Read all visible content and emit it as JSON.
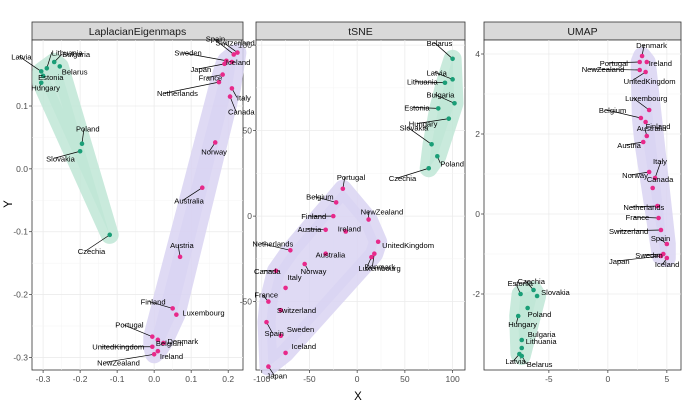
{
  "chart_data": {
    "type": "scatter",
    "xlabel": "X",
    "ylabel": "Y",
    "group_colors": {
      "east": "#1a9e77",
      "west": "#e7298a"
    },
    "hull_colors": {
      "east": "#bfe6d6",
      "west": "#d9d4f2"
    },
    "panels": [
      {
        "title": "LaplacianEigenmaps",
        "xlim": [
          -0.33,
          0.24
        ],
        "ylim": [
          -0.32,
          0.205
        ],
        "xticks": [
          -0.3,
          -0.2,
          -0.1,
          0.0,
          0.1,
          0.2
        ],
        "xtick_labels": [
          "-0.3",
          "-0.2",
          "-0.1",
          "0.0",
          "0.1",
          "0.2"
        ],
        "yticks": [
          0.1,
          0.0,
          -0.1,
          -0.2,
          -0.3
        ],
        "ytick_labels": [
          "0.1",
          "0.0",
          "-0.1",
          "-0.2",
          "-0.3"
        ],
        "points": [
          {
            "name": "Latvia",
            "x": -0.305,
            "y": 0.155,
            "group": "east"
          },
          {
            "name": "Lithuania",
            "x": -0.29,
            "y": 0.16,
            "group": "east"
          },
          {
            "name": "Bulgaria",
            "x": -0.27,
            "y": 0.17,
            "group": "east"
          },
          {
            "name": "Estonia",
            "x": -0.3,
            "y": 0.148,
            "group": "east"
          },
          {
            "name": "Belarus",
            "x": -0.255,
            "y": 0.163,
            "group": "east"
          },
          {
            "name": "Hungary",
            "x": -0.305,
            "y": 0.137,
            "group": "east"
          },
          {
            "name": "Poland",
            "x": -0.195,
            "y": 0.04,
            "group": "east"
          },
          {
            "name": "Slovakia",
            "x": -0.2,
            "y": 0.028,
            "group": "east"
          },
          {
            "name": "Czechia",
            "x": -0.12,
            "y": -0.105,
            "group": "east"
          },
          {
            "name": "Spain",
            "x": 0.215,
            "y": 0.182,
            "group": "west"
          },
          {
            "name": "Switzerland",
            "x": 0.225,
            "y": 0.185,
            "group": "west"
          },
          {
            "name": "Sweden",
            "x": 0.195,
            "y": 0.172,
            "group": "west"
          },
          {
            "name": "Iceland",
            "x": 0.21,
            "y": 0.17,
            "group": "west"
          },
          {
            "name": "Japan",
            "x": 0.19,
            "y": 0.167,
            "group": "west"
          },
          {
            "name": "France",
            "x": 0.185,
            "y": 0.15,
            "group": "west"
          },
          {
            "name": "Netherlands",
            "x": 0.175,
            "y": 0.138,
            "group": "west"
          },
          {
            "name": "Italy",
            "x": 0.21,
            "y": 0.128,
            "group": "west"
          },
          {
            "name": "Canada",
            "x": 0.205,
            "y": 0.115,
            "group": "west"
          },
          {
            "name": "Norway",
            "x": 0.165,
            "y": 0.042,
            "group": "west"
          },
          {
            "name": "Australia",
            "x": 0.13,
            "y": -0.03,
            "group": "west"
          },
          {
            "name": "Austria",
            "x": 0.07,
            "y": -0.14,
            "group": "west"
          },
          {
            "name": "Finland",
            "x": 0.05,
            "y": -0.222,
            "group": "west"
          },
          {
            "name": "Luxembourg",
            "x": 0.06,
            "y": -0.232,
            "group": "west"
          },
          {
            "name": "Portugal",
            "x": -0.005,
            "y": -0.267,
            "group": "west"
          },
          {
            "name": "Belgium",
            "x": 0.01,
            "y": -0.272,
            "group": "west"
          },
          {
            "name": "Denmark",
            "x": 0.025,
            "y": -0.277,
            "group": "west"
          },
          {
            "name": "UnitedKingdom",
            "x": -0.005,
            "y": -0.283,
            "group": "west"
          },
          {
            "name": "Ireland",
            "x": 0.01,
            "y": -0.29,
            "group": "west"
          },
          {
            "name": "NewZealand",
            "x": 0.0,
            "y": -0.295,
            "group": "west"
          }
        ]
      },
      {
        "title": "tSNE",
        "xlim": [
          -106,
          113
        ],
        "ylim": [
          -90,
          103
        ],
        "xticks": [
          -100,
          -50,
          0,
          50,
          100
        ],
        "xtick_labels": [
          "-100",
          "-50",
          "0",
          "50",
          "100"
        ],
        "yticks": [
          100,
          50,
          0,
          -50
        ],
        "ytick_labels": [
          "100",
          "50",
          "0",
          "-50"
        ],
        "points": [
          {
            "name": "Belarus",
            "x": 100,
            "y": 92,
            "group": "east"
          },
          {
            "name": "Latvia",
            "x": 100,
            "y": 80,
            "group": "east"
          },
          {
            "name": "Lithuania",
            "x": 92,
            "y": 78,
            "group": "east"
          },
          {
            "name": "Bulgaria",
            "x": 102,
            "y": 66,
            "group": "east"
          },
          {
            "name": "Estonia",
            "x": 85,
            "y": 63,
            "group": "east"
          },
          {
            "name": "Hungary",
            "x": 96,
            "y": 57,
            "group": "east"
          },
          {
            "name": "Slovakia",
            "x": 78,
            "y": 42,
            "group": "east"
          },
          {
            "name": "Poland",
            "x": 84,
            "y": 35,
            "group": "east"
          },
          {
            "name": "Czechia",
            "x": 75,
            "y": 28,
            "group": "east"
          },
          {
            "name": "Portugal",
            "x": -15,
            "y": 16,
            "group": "west"
          },
          {
            "name": "Belgium",
            "x": -22,
            "y": 8,
            "group": "west"
          },
          {
            "name": "Finland",
            "x": -25,
            "y": 0,
            "group": "west"
          },
          {
            "name": "NewZealand",
            "x": 12,
            "y": -2,
            "group": "west"
          },
          {
            "name": "Austria",
            "x": -33,
            "y": -8,
            "group": "west"
          },
          {
            "name": "Ireland",
            "x": -12,
            "y": -9,
            "group": "west"
          },
          {
            "name": "UnitedKingdom",
            "x": 22,
            "y": -15,
            "group": "west"
          },
          {
            "name": "Netherlands",
            "x": -70,
            "y": -20,
            "group": "west"
          },
          {
            "name": "Denmark",
            "x": 18,
            "y": -22,
            "group": "west"
          },
          {
            "name": "Australia",
            "x": -33,
            "y": -22,
            "group": "west"
          },
          {
            "name": "Luxembourg",
            "x": 15,
            "y": -24,
            "group": "west"
          },
          {
            "name": "Canada",
            "x": -85,
            "y": -32,
            "group": "west"
          },
          {
            "name": "Norway",
            "x": -55,
            "y": -28,
            "group": "west"
          },
          {
            "name": "Italy",
            "x": -75,
            "y": -42,
            "group": "west"
          },
          {
            "name": "France",
            "x": -93,
            "y": -50,
            "group": "west"
          },
          {
            "name": "Switzerland",
            "x": -80,
            "y": -55,
            "group": "west"
          },
          {
            "name": "Spain",
            "x": -95,
            "y": -62,
            "group": "west"
          },
          {
            "name": "Sweden",
            "x": -80,
            "y": -70,
            "group": "west"
          },
          {
            "name": "Iceland",
            "x": -75,
            "y": -80,
            "group": "west"
          },
          {
            "name": "Japan",
            "x": -93,
            "y": -88,
            "group": "west"
          }
        ]
      },
      {
        "title": "UMAP",
        "xlim": [
          -10.5,
          6.2
        ],
        "ylim": [
          -3.9,
          4.35
        ],
        "xticks": [
          -5,
          0,
          5
        ],
        "xtick_labels": [
          "-5",
          "0",
          "5"
        ],
        "yticks": [
          4,
          2,
          0,
          -2
        ],
        "ytick_labels": [
          "4",
          "2",
          "0",
          "-2"
        ],
        "points": [
          {
            "name": "Denmark",
            "x": 2.9,
            "y": 3.95,
            "group": "west"
          },
          {
            "name": "Portugal",
            "x": 2.7,
            "y": 3.8,
            "group": "west"
          },
          {
            "name": "Ireland",
            "x": 3.3,
            "y": 3.8,
            "group": "west"
          },
          {
            "name": "NewZealand",
            "x": 2.7,
            "y": 3.6,
            "group": "west"
          },
          {
            "name": "UnitedKingdom",
            "x": 3.2,
            "y": 3.55,
            "group": "west"
          },
          {
            "name": "Luxembourg",
            "x": 3.5,
            "y": 2.6,
            "group": "west"
          },
          {
            "name": "Belgium",
            "x": 2.8,
            "y": 2.4,
            "group": "west"
          },
          {
            "name": "Finland",
            "x": 3.2,
            "y": 2.3,
            "group": "west"
          },
          {
            "name": "Australia",
            "x": 3.3,
            "y": 1.95,
            "group": "west"
          },
          {
            "name": "Austria",
            "x": 3.0,
            "y": 1.8,
            "group": "west"
          },
          {
            "name": "Norway",
            "x": 3.5,
            "y": 1.05,
            "group": "west"
          },
          {
            "name": "Italy",
            "x": 4.0,
            "y": 0.9,
            "group": "west"
          },
          {
            "name": "Canada",
            "x": 3.8,
            "y": 0.65,
            "group": "west"
          },
          {
            "name": "Netherlands",
            "x": 4.2,
            "y": 0.2,
            "group": "west"
          },
          {
            "name": "France",
            "x": 4.3,
            "y": -0.1,
            "group": "west"
          },
          {
            "name": "Switzerland",
            "x": 4.5,
            "y": -0.4,
            "group": "west"
          },
          {
            "name": "Spain",
            "x": 5.0,
            "y": -0.75,
            "group": "west"
          },
          {
            "name": "Sweden",
            "x": 4.7,
            "y": -1.0,
            "group": "west"
          },
          {
            "name": "Japan",
            "x": 4.5,
            "y": -1.05,
            "group": "west"
          },
          {
            "name": "Iceland",
            "x": 5.0,
            "y": -1.1,
            "group": "west"
          },
          {
            "name": "Czechia",
            "x": -6.3,
            "y": -1.9,
            "group": "east"
          },
          {
            "name": "Estonia",
            "x": -7.4,
            "y": -2.0,
            "group": "east"
          },
          {
            "name": "Slovakia",
            "x": -6.0,
            "y": -2.05,
            "group": "east"
          },
          {
            "name": "Poland",
            "x": -6.8,
            "y": -2.35,
            "group": "east"
          },
          {
            "name": "Hungary",
            "x": -7.6,
            "y": -2.55,
            "group": "east"
          },
          {
            "name": "Bulgaria",
            "x": -7.3,
            "y": -3.15,
            "group": "east"
          },
          {
            "name": "Lithuania",
            "x": -7.3,
            "y": -3.35,
            "group": "east"
          },
          {
            "name": "Latvia",
            "x": -7.5,
            "y": -3.5,
            "group": "east"
          },
          {
            "name": "Belarus",
            "x": -7.3,
            "y": -3.55,
            "group": "east"
          }
        ]
      }
    ]
  }
}
